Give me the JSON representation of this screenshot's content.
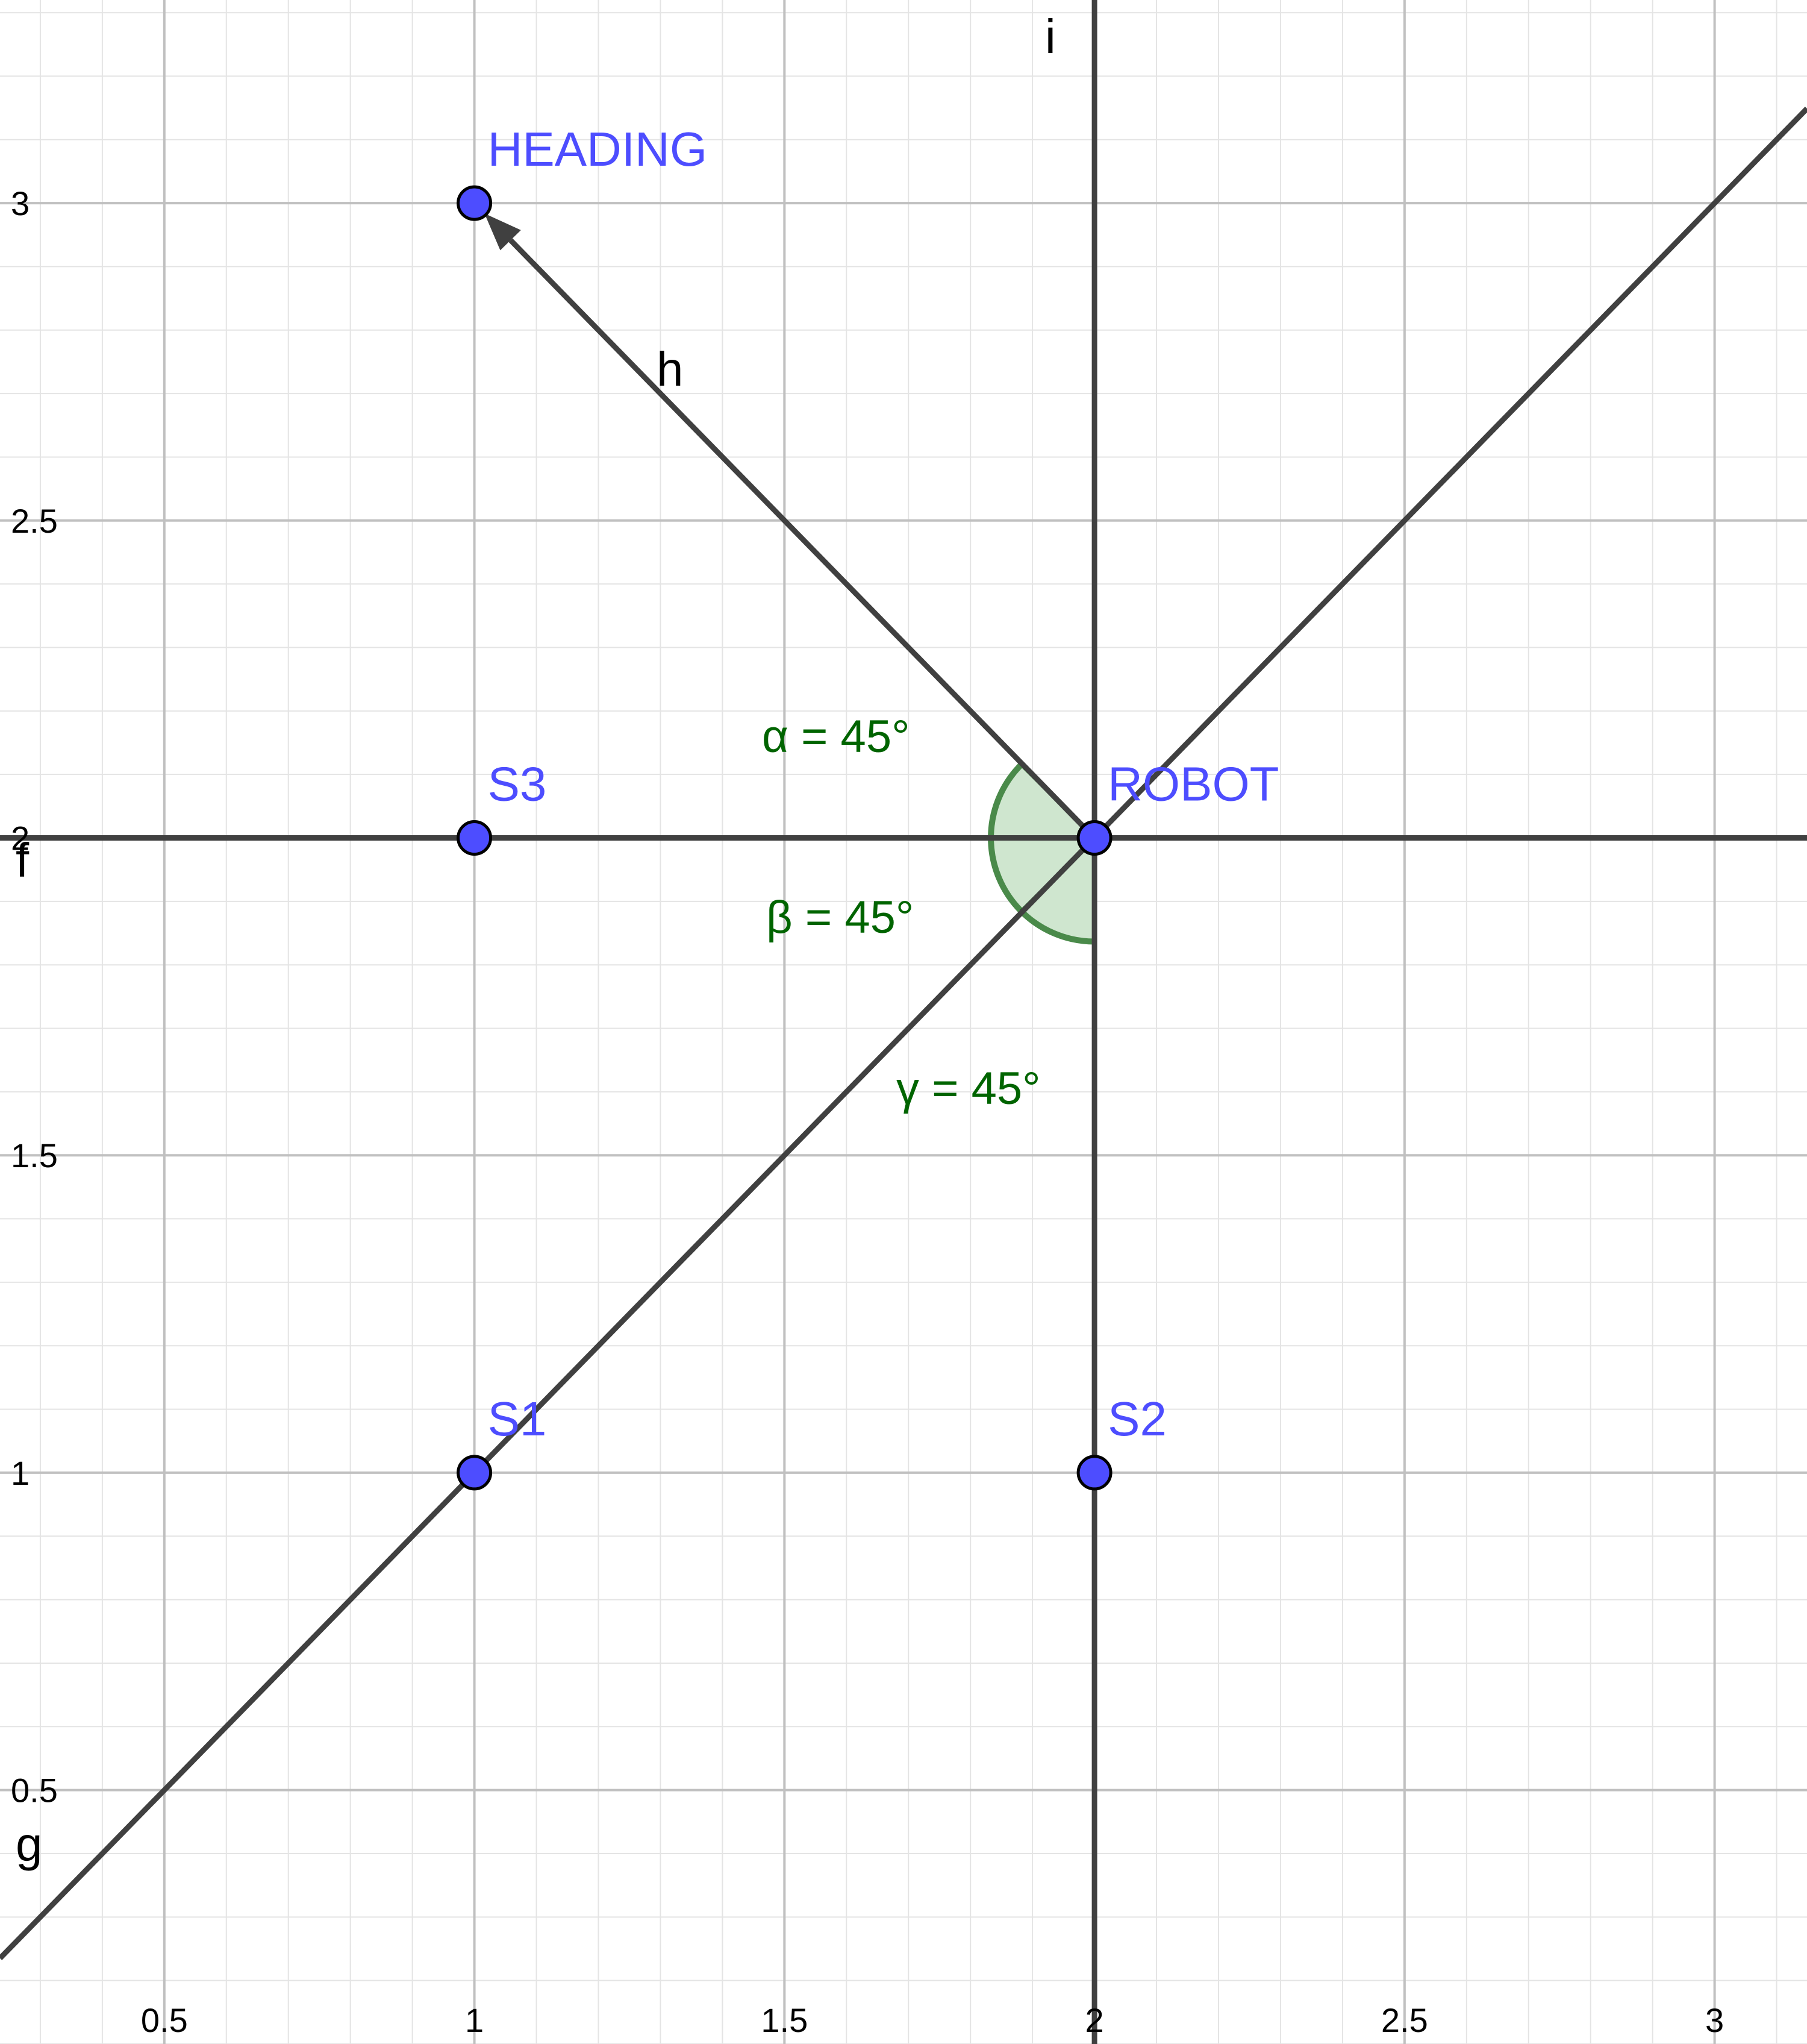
{
  "chart_data": {
    "type": "scatter",
    "grid": true,
    "xlim": [
      0.235,
      3.149
    ],
    "ylim": [
      0.1,
      3.32
    ],
    "x_ticks": [
      {
        "value": 0.5,
        "label": "0.5"
      },
      {
        "value": 1,
        "label": "1"
      },
      {
        "value": 1.5,
        "label": "1.5"
      },
      {
        "value": 2,
        "label": "2"
      },
      {
        "value": 2.5,
        "label": "2.5"
      },
      {
        "value": 3,
        "label": "3"
      }
    ],
    "y_ticks": [
      {
        "value": 0.5,
        "label": "0.5"
      },
      {
        "value": 1,
        "label": "1"
      },
      {
        "value": 1.5,
        "label": "1.5"
      },
      {
        "value": 2,
        "label": "2"
      },
      {
        "value": 2.5,
        "label": "2.5"
      },
      {
        "value": 3,
        "label": "3"
      }
    ],
    "points": [
      {
        "name": "HEADING",
        "x": 1,
        "y": 3
      },
      {
        "name": "S3",
        "x": 1,
        "y": 2
      },
      {
        "name": "ROBOT",
        "x": 2,
        "y": 2
      },
      {
        "name": "S1",
        "x": 1,
        "y": 1
      },
      {
        "name": "S2",
        "x": 2,
        "y": 1
      }
    ],
    "lines": [
      {
        "name": "f",
        "equation": "y = 2"
      },
      {
        "name": "g",
        "equation": "y = x"
      },
      {
        "name": "i",
        "equation": "x = 2"
      }
    ],
    "vectors": [
      {
        "name": "h",
        "from": [
          2,
          2
        ],
        "to": [
          1,
          3
        ]
      }
    ],
    "angles": [
      {
        "label": "α = 45°",
        "value_deg": 45
      },
      {
        "label": "β = 45°",
        "value_deg": 45
      },
      {
        "label": "γ = 45°",
        "value_deg": 45
      }
    ]
  },
  "colors": {
    "point_fill": "#4d4dff",
    "point_text": "#4d4dff",
    "line": "#404040",
    "angle": "#006400",
    "angle_fill": "#cfe6cf",
    "grid_major": "#c0c0c0",
    "grid_minor": "#e4e4e4"
  }
}
